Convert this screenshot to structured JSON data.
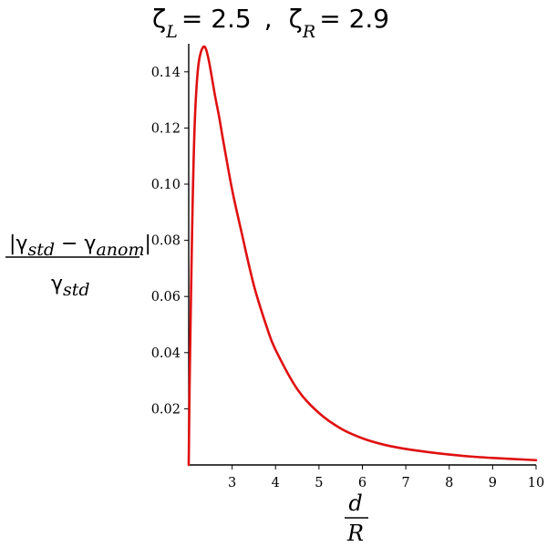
{
  "chart_data": {
    "type": "line",
    "title": {
      "zeta_symbol": "ζ",
      "left_sub": "L",
      "left_value": "= 2.5",
      "separator": ",",
      "right_sub": "R",
      "right_value": "= 2.9"
    },
    "xlabel": {
      "numerator": "d",
      "denominator": "R"
    },
    "ylabel": {
      "numerator_open": "|γ",
      "numerator_sub1": "std",
      "numerator_minus": " − γ",
      "numerator_sub2": "anom",
      "numerator_close": "|",
      "denominator": "γ",
      "denominator_sub": "std"
    },
    "xlim": [
      2.0,
      10.0
    ],
    "ylim": [
      0.0,
      0.15
    ],
    "x_ticks": [
      {
        "value": 3,
        "label": "3"
      },
      {
        "value": 4,
        "label": "4"
      },
      {
        "value": 5,
        "label": "5"
      },
      {
        "value": 6,
        "label": "6"
      },
      {
        "value": 7,
        "label": "7"
      },
      {
        "value": 8,
        "label": "8"
      },
      {
        "value": 9,
        "label": "9"
      },
      {
        "value": 10,
        "label": "10"
      }
    ],
    "y_ticks": [
      {
        "value": 0.02,
        "label": "0.02"
      },
      {
        "value": 0.04,
        "label": "0.04"
      },
      {
        "value": 0.06,
        "label": "0.06"
      },
      {
        "value": 0.08,
        "label": "0.08"
      },
      {
        "value": 0.1,
        "label": "0.10"
      },
      {
        "value": 0.12,
        "label": "0.12"
      },
      {
        "value": 0.14,
        "label": "0.14"
      }
    ],
    "grid": false,
    "series": [
      {
        "color": "#e01010",
        "x": [
          2.0,
          2.02,
          2.05,
          2.08,
          2.1,
          2.13,
          2.17,
          2.22,
          2.28,
          2.35,
          2.4,
          2.45,
          2.5,
          2.6,
          2.7,
          2.8,
          3.0,
          3.2,
          3.5,
          3.8,
          4.0,
          4.5,
          5.0,
          5.5,
          6.0,
          6.5,
          7.0,
          7.5,
          8.0,
          8.5,
          9.0,
          9.5,
          10.0
        ],
        "y": [
          0.0,
          0.028,
          0.058,
          0.085,
          0.1,
          0.118,
          0.132,
          0.142,
          0.147,
          0.149,
          0.148,
          0.145,
          0.141,
          0.132,
          0.124,
          0.115,
          0.098,
          0.084,
          0.064,
          0.049,
          0.041,
          0.027,
          0.0185,
          0.013,
          0.0095,
          0.0072,
          0.0057,
          0.0046,
          0.0037,
          0.003,
          0.0025,
          0.0021,
          0.0017
        ]
      }
    ]
  }
}
